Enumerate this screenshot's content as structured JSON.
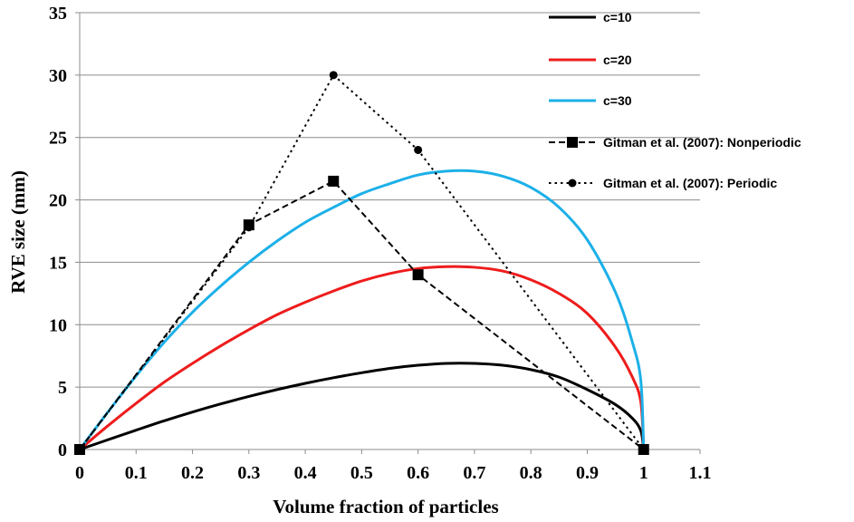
{
  "chart_data": {
    "type": "line",
    "title": "",
    "xlabel": "Volume fraction of particles",
    "ylabel": "RVE size (mm)",
    "xlim": [
      0,
      1.1
    ],
    "ylim": [
      0,
      35
    ],
    "xticks": [
      0,
      0.1,
      0.2,
      0.3,
      0.4,
      0.5,
      0.6,
      0.7,
      0.8,
      0.9,
      1,
      1.1
    ],
    "yticks": [
      0,
      5,
      10,
      15,
      20,
      25,
      30,
      35
    ],
    "xtick_labels": [
      "0",
      "0.1",
      "0.2",
      "0.3",
      "0.4",
      "0.5",
      "0.6",
      "0.7",
      "0.8",
      "0.9",
      "1",
      "1.1"
    ],
    "ytick_labels": [
      "0",
      "5",
      "10",
      "15",
      "20",
      "25",
      "30",
      "35"
    ],
    "grid": "horizontal",
    "legend_position": "top-right",
    "series": [
      {
        "name": "c=10",
        "color": "#000000",
        "style": "solid",
        "marker": "none",
        "x": [
          0,
          0.05,
          0.1,
          0.15,
          0.2,
          0.25,
          0.3,
          0.35,
          0.4,
          0.45,
          0.5,
          0.55,
          0.6,
          0.65,
          0.7,
          0.75,
          0.8,
          0.85,
          0.9,
          0.95,
          0.98,
          0.995,
          1
        ],
        "y": [
          0,
          0.78,
          1.55,
          2.3,
          3.0,
          3.65,
          4.25,
          4.8,
          5.3,
          5.75,
          6.15,
          6.5,
          6.75,
          6.9,
          6.9,
          6.75,
          6.4,
          5.8,
          4.8,
          3.6,
          2.5,
          1.5,
          0
        ]
      },
      {
        "name": "c=20",
        "color": "#ee1c1c",
        "style": "solid",
        "marker": "none",
        "x": [
          0,
          0.05,
          0.1,
          0.15,
          0.2,
          0.25,
          0.3,
          0.35,
          0.4,
          0.45,
          0.5,
          0.55,
          0.6,
          0.65,
          0.7,
          0.75,
          0.8,
          0.85,
          0.9,
          0.95,
          0.98,
          0.995,
          1
        ],
        "y": [
          0,
          1.9,
          3.7,
          5.4,
          6.9,
          8.3,
          9.6,
          10.8,
          11.8,
          12.7,
          13.5,
          14.1,
          14.5,
          14.65,
          14.6,
          14.3,
          13.6,
          12.5,
          10.9,
          8.2,
          5.8,
          3.8,
          0
        ]
      },
      {
        "name": "c=30",
        "color": "#1cb0e8",
        "style": "solid",
        "marker": "none",
        "x": [
          0,
          0.05,
          0.1,
          0.15,
          0.2,
          0.25,
          0.3,
          0.35,
          0.4,
          0.45,
          0.5,
          0.55,
          0.6,
          0.65,
          0.7,
          0.75,
          0.8,
          0.85,
          0.9,
          0.95,
          0.98,
          0.995,
          1
        ],
        "y": [
          0,
          3.0,
          5.9,
          8.6,
          11.0,
          13.1,
          15.0,
          16.7,
          18.2,
          19.4,
          20.5,
          21.3,
          22.0,
          22.3,
          22.3,
          21.9,
          21.0,
          19.4,
          16.8,
          12.6,
          8.6,
          5.5,
          0
        ]
      },
      {
        "name": "Gitman et al. (2007): Nonperiodic",
        "color": "#000000",
        "style": "dashed",
        "marker": "square",
        "x": [
          0,
          0.3,
          0.45,
          0.6,
          1
        ],
        "y": [
          0,
          18,
          21.5,
          14,
          0
        ]
      },
      {
        "name": "Gitman et al. (2007): Periodic",
        "color": "#000000",
        "style": "dotted",
        "marker": "circle",
        "x": [
          0,
          0.3,
          0.45,
          0.6,
          1
        ],
        "y": [
          0,
          17.8,
          30,
          24,
          0
        ]
      }
    ]
  }
}
